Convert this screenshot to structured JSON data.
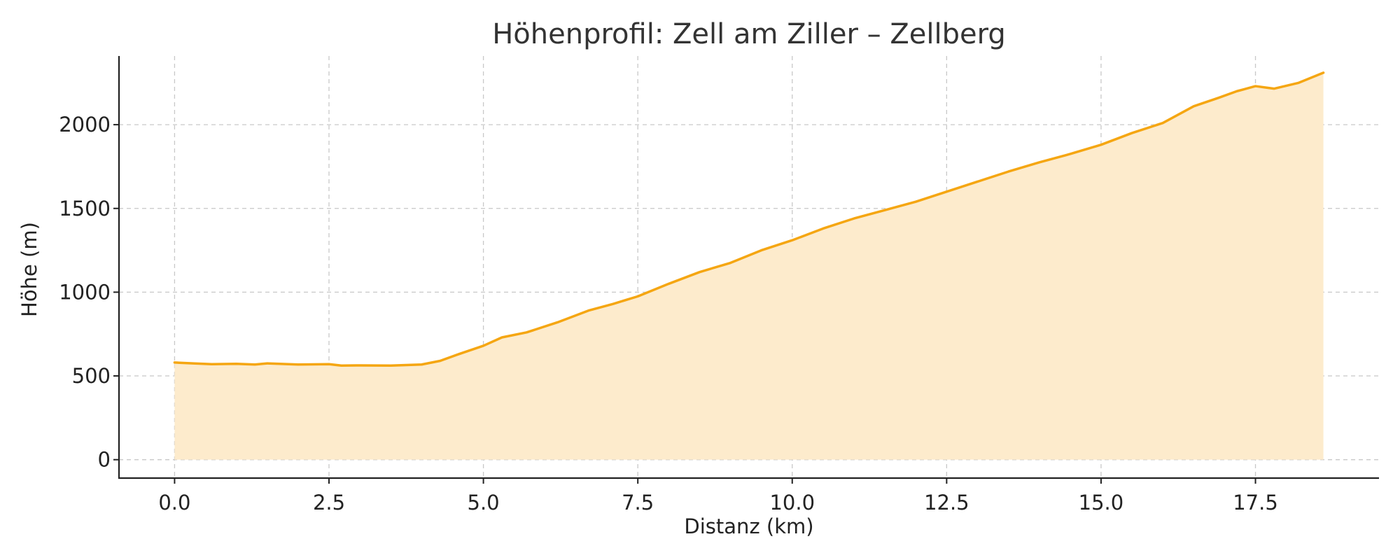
{
  "chart_data": {
    "type": "area",
    "title": "Höhenprofil: Zell am Ziller – Zellberg",
    "xlabel": "Distanz (km)",
    "ylabel": "Höhe (m)",
    "xlim": [
      -0.9,
      19.5
    ],
    "ylim": [
      -110,
      2410
    ],
    "xticks": [
      0.0,
      2.5,
      5.0,
      7.5,
      10.0,
      12.5,
      15.0,
      17.5
    ],
    "xtick_labels": [
      "0.0",
      "2.5",
      "5.0",
      "7.5",
      "10.0",
      "12.5",
      "15.0",
      "17.5"
    ],
    "yticks": [
      0,
      500,
      1000,
      1500,
      2000
    ],
    "ytick_labels": [
      "0",
      "500",
      "1000",
      "1500",
      "2000"
    ],
    "grid": true,
    "colors": {
      "line": "#f5a612",
      "fill": "#fdebcc"
    },
    "series": [
      {
        "x": [
          0.0,
          0.3,
          0.6,
          1.0,
          1.3,
          1.5,
          2.0,
          2.5,
          2.7,
          3.0,
          3.5,
          4.0,
          4.3,
          4.6,
          5.0,
          5.3,
          5.7,
          6.2,
          6.7,
          7.1,
          7.5,
          8.0,
          8.5,
          9.0,
          9.5,
          10.0,
          10.5,
          11.0,
          11.5,
          12.0,
          12.5,
          13.0,
          13.5,
          14.0,
          14.5,
          15.0,
          15.5,
          16.0,
          16.5,
          16.9,
          17.2,
          17.5,
          17.8,
          18.2,
          18.6
        ],
        "y": [
          580,
          575,
          570,
          572,
          568,
          575,
          568,
          570,
          562,
          563,
          562,
          568,
          590,
          630,
          680,
          730,
          760,
          820,
          890,
          930,
          975,
          1050,
          1120,
          1175,
          1250,
          1310,
          1380,
          1440,
          1490,
          1540,
          1600,
          1660,
          1720,
          1775,
          1825,
          1880,
          1950,
          2010,
          2110,
          2160,
          2200,
          2230,
          2215,
          2250,
          2310
        ]
      }
    ]
  }
}
